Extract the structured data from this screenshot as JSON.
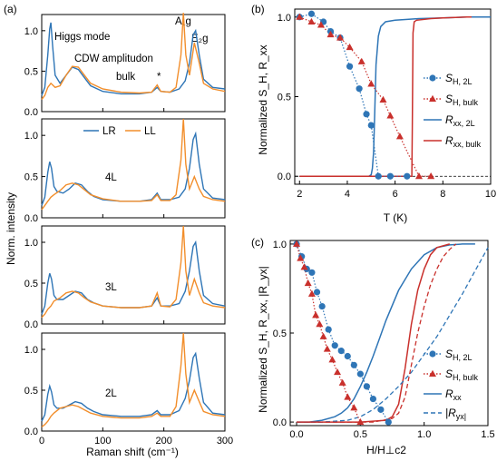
{
  "colors": {
    "blue": "#2e75b6",
    "orange": "#f28e2b",
    "red": "#c9302c",
    "dark": "#000000"
  },
  "chart_data": [
    {
      "id": "a",
      "type": "line",
      "panel_label": "(a)",
      "xlabel": "Raman shift (cm⁻¹)",
      "ylabel": "Norm. intensity",
      "xlim": [
        0,
        300
      ],
      "xticks": [
        "0",
        "100",
        "200",
        "300"
      ],
      "yticks": [
        "0.0",
        "0.5",
        "1.0"
      ],
      "legend": {
        "position": "top-left of 4L panel",
        "entries": [
          "LR",
          "LL"
        ]
      },
      "subpanels": [
        {
          "sample": "bulk",
          "ylim": [
            0,
            1.2
          ],
          "annotations": [
            "Higgs mode",
            "CDW amplitudon",
            "*",
            "A₁g",
            "E₂g"
          ],
          "series": [
            {
              "name": "LR",
              "x": [
                0,
                5,
                10,
                13,
                15,
                18,
                22,
                30,
                40,
                50,
                60,
                70,
                80,
                100,
                130,
                160,
                180,
                189,
                195,
                210,
                225,
                235,
                242,
                248,
                252,
                258,
                265,
                280,
                300
              ],
              "y": [
                0.2,
                0.3,
                0.7,
                1.02,
                1.1,
                0.8,
                0.45,
                0.35,
                0.45,
                0.55,
                0.52,
                0.42,
                0.32,
                0.25,
                0.22,
                0.22,
                0.24,
                0.3,
                0.25,
                0.24,
                0.28,
                0.38,
                0.6,
                0.95,
                1.0,
                0.7,
                0.4,
                0.3,
                0.28
              ]
            },
            {
              "name": "LL",
              "x": [
                0,
                5,
                10,
                15,
                22,
                30,
                40,
                50,
                60,
                70,
                80,
                100,
                130,
                160,
                180,
                189,
                195,
                210,
                220,
                228,
                232,
                236,
                242,
                250,
                258,
                265,
                280,
                300
              ],
              "y": [
                0.15,
                0.2,
                0.3,
                0.35,
                0.3,
                0.32,
                0.45,
                0.56,
                0.55,
                0.45,
                0.35,
                0.28,
                0.24,
                0.23,
                0.24,
                0.33,
                0.25,
                0.24,
                0.3,
                0.7,
                1.22,
                0.7,
                0.45,
                0.85,
                0.6,
                0.35,
                0.28,
                0.25
              ]
            }
          ]
        },
        {
          "sample": "4L",
          "ylim": [
            0,
            1.2
          ],
          "series": [
            {
              "name": "LR",
              "x": [
                0,
                5,
                10,
                13,
                16,
                20,
                25,
                35,
                45,
                55,
                65,
                75,
                85,
                100,
                130,
                160,
                180,
                189,
                195,
                210,
                225,
                235,
                242,
                248,
                252,
                258,
                265,
                280,
                300
              ],
              "y": [
                0.15,
                0.25,
                0.55,
                0.68,
                0.6,
                0.38,
                0.32,
                0.3,
                0.35,
                0.42,
                0.4,
                0.32,
                0.26,
                0.22,
                0.2,
                0.2,
                0.22,
                0.3,
                0.22,
                0.22,
                0.25,
                0.35,
                0.6,
                0.95,
                1.02,
                0.65,
                0.35,
                0.24,
                0.22
              ]
            },
            {
              "name": "LL",
              "x": [
                0,
                5,
                10,
                15,
                20,
                30,
                40,
                50,
                60,
                70,
                80,
                100,
                130,
                160,
                180,
                189,
                195,
                210,
                220,
                228,
                232,
                236,
                242,
                250,
                258,
                265,
                280,
                300
              ],
              "y": [
                0.1,
                0.15,
                0.2,
                0.25,
                0.28,
                0.33,
                0.4,
                0.42,
                0.4,
                0.34,
                0.28,
                0.23,
                0.2,
                0.2,
                0.21,
                0.28,
                0.21,
                0.21,
                0.28,
                0.7,
                1.2,
                0.65,
                0.35,
                0.5,
                0.35,
                0.26,
                0.22,
                0.2
              ]
            }
          ]
        },
        {
          "sample": "3L",
          "ylim": [
            0,
            1.2
          ],
          "series": [
            {
              "name": "LR",
              "x": [
                0,
                5,
                10,
                13,
                16,
                20,
                25,
                35,
                45,
                55,
                65,
                75,
                85,
                100,
                130,
                160,
                180,
                189,
                195,
                210,
                225,
                235,
                242,
                248,
                252,
                258,
                265,
                280,
                300
              ],
              "y": [
                0.12,
                0.22,
                0.5,
                0.62,
                0.55,
                0.35,
                0.3,
                0.3,
                0.35,
                0.4,
                0.38,
                0.3,
                0.26,
                0.22,
                0.2,
                0.2,
                0.22,
                0.32,
                0.22,
                0.22,
                0.25,
                0.4,
                0.65,
                0.95,
                1.0,
                0.65,
                0.35,
                0.25,
                0.22
              ]
            },
            {
              "name": "LL",
              "x": [
                0,
                5,
                10,
                15,
                20,
                30,
                40,
                50,
                60,
                70,
                80,
                100,
                130,
                160,
                180,
                189,
                195,
                210,
                220,
                228,
                232,
                236,
                242,
                250,
                258,
                265,
                280,
                300
              ],
              "y": [
                0.08,
                0.12,
                0.18,
                0.22,
                0.28,
                0.32,
                0.38,
                0.4,
                0.38,
                0.32,
                0.27,
                0.22,
                0.2,
                0.2,
                0.22,
                0.38,
                0.22,
                0.21,
                0.3,
                0.75,
                1.2,
                0.65,
                0.35,
                0.55,
                0.38,
                0.26,
                0.22,
                0.2
              ]
            }
          ]
        },
        {
          "sample": "2L",
          "ylim": [
            0,
            1.2
          ],
          "series": [
            {
              "name": "LR",
              "x": [
                0,
                5,
                10,
                13,
                16,
                20,
                25,
                35,
                45,
                55,
                65,
                75,
                85,
                100,
                130,
                160,
                180,
                189,
                195,
                210,
                225,
                235,
                242,
                248,
                252,
                258,
                265,
                280,
                300
              ],
              "y": [
                0.12,
                0.2,
                0.45,
                0.55,
                0.48,
                0.32,
                0.28,
                0.28,
                0.32,
                0.36,
                0.34,
                0.28,
                0.24,
                0.2,
                0.18,
                0.18,
                0.2,
                0.25,
                0.2,
                0.2,
                0.25,
                0.4,
                0.62,
                0.9,
                0.95,
                0.65,
                0.35,
                0.22,
                0.2
              ]
            },
            {
              "name": "LL",
              "x": [
                0,
                5,
                10,
                15,
                20,
                30,
                40,
                50,
                60,
                70,
                80,
                100,
                130,
                160,
                180,
                189,
                195,
                210,
                220,
                228,
                232,
                236,
                242,
                250,
                258,
                265,
                280,
                300
              ],
              "y": [
                0.05,
                0.08,
                0.12,
                0.18,
                0.22,
                0.28,
                0.3,
                0.32,
                0.3,
                0.26,
                0.22,
                0.18,
                0.16,
                0.16,
                0.18,
                0.22,
                0.18,
                0.18,
                0.3,
                0.8,
                1.2,
                0.7,
                0.35,
                0.5,
                0.36,
                0.24,
                0.2,
                0.18
              ]
            }
          ]
        }
      ]
    },
    {
      "id": "b",
      "type": "line",
      "panel_label": "(b)",
      "xlabel": "T (K)",
      "ylabel": "Normalized S_H, R_xx",
      "xlim": [
        1.8,
        10
      ],
      "ylim": [
        -0.05,
        1.05
      ],
      "xticks": [
        "2",
        "4",
        "6",
        "8",
        "10"
      ],
      "yticks": [
        "0.0",
        "0.5",
        "1.0"
      ],
      "legend": {
        "position": "lower-right",
        "entries": [
          "S_H, 2L",
          "S_H, bulk",
          "R_xx, 2L",
          "R_xx, bulk"
        ]
      },
      "series": [
        {
          "name": "S_H, 2L",
          "x": [
            2.0,
            2.5,
            3.0,
            3.3,
            3.7,
            4.1,
            4.5,
            4.8,
            5.0,
            5.3,
            5.8,
            6.5
          ],
          "y": [
            1.0,
            1.02,
            0.97,
            0.91,
            0.87,
            0.69,
            0.55,
            0.39,
            0.32,
            0.0,
            0.0,
            0.0
          ]
        },
        {
          "name": "S_H, bulk",
          "x": [
            2.0,
            2.5,
            2.9,
            3.3,
            3.7,
            4.1,
            4.6,
            5.0,
            5.5,
            5.8,
            6.2,
            7.0,
            7.5
          ],
          "y": [
            1.0,
            0.97,
            0.95,
            0.89,
            0.87,
            0.81,
            0.72,
            0.58,
            0.48,
            0.38,
            0.25,
            0.0,
            0.0
          ]
        },
        {
          "name": "R_xx, 2L",
          "x": [
            2,
            4,
            4.9,
            5.0,
            5.05,
            5.1,
            5.15,
            5.2,
            5.3,
            5.4,
            5.6,
            6,
            7,
            8,
            9,
            10
          ],
          "y": [
            0,
            0,
            0,
            0.01,
            0.05,
            0.15,
            0.4,
            0.7,
            0.88,
            0.94,
            0.97,
            0.98,
            0.99,
            0.995,
            1.0,
            1.0
          ]
        },
        {
          "name": "R_xx, bulk",
          "x": [
            2,
            4,
            6,
            6.7,
            6.72,
            6.75,
            6.8,
            6.9,
            7.5,
            8,
            9,
            9.2
          ],
          "y": [
            0,
            0,
            0,
            0,
            0.3,
            0.9,
            0.97,
            0.98,
            0.99,
            0.995,
            1.0,
            1.0
          ]
        }
      ]
    },
    {
      "id": "c",
      "type": "line",
      "panel_label": "(c)",
      "xlabel": "H/H⊥c2",
      "ylabel": "Normalized S_H, R_xx, |R_yx|",
      "xlim": [
        -0.05,
        1.5
      ],
      "ylim": [
        -0.02,
        1.02
      ],
      "xticks": [
        "0.0",
        "0.5",
        "1.0",
        "1.5"
      ],
      "yticks": [
        "0.0",
        "0.5",
        "1.0"
      ],
      "legend": {
        "position": "lower-right",
        "entries": [
          "S_H, 2L",
          "S_H, bulk",
          "R_xx",
          "|R_yx|"
        ]
      },
      "series": [
        {
          "name": "S_H, 2L",
          "x": [
            0.0,
            0.04,
            0.08,
            0.12,
            0.16,
            0.2,
            0.25,
            0.3,
            0.35,
            0.4,
            0.45,
            0.5,
            0.55,
            0.6,
            0.66,
            0.72
          ],
          "y": [
            1.0,
            0.93,
            0.86,
            0.84,
            0.73,
            0.65,
            0.52,
            0.43,
            0.4,
            0.37,
            0.32,
            0.27,
            0.2,
            0.13,
            0.07,
            0.0
          ]
        },
        {
          "name": "S_H, bulk",
          "x": [
            0.0,
            0.03,
            0.06,
            0.09,
            0.12,
            0.15,
            0.18,
            0.21,
            0.24,
            0.28,
            0.32,
            0.36,
            0.4,
            0.45,
            0.5
          ],
          "y": [
            1.0,
            0.92,
            0.87,
            0.78,
            0.72,
            0.6,
            0.55,
            0.48,
            0.41,
            0.35,
            0.28,
            0.22,
            0.14,
            0.08,
            0.0
          ]
        },
        {
          "name": "R_xx, 2L",
          "x": [
            0.0,
            0.1,
            0.2,
            0.3,
            0.35,
            0.4,
            0.45,
            0.5,
            0.55,
            0.6,
            0.65,
            0.7,
            0.8,
            0.9,
            1.0,
            1.1,
            1.2,
            1.3,
            1.4
          ],
          "y": [
            0.0,
            0.0,
            0.01,
            0.03,
            0.05,
            0.08,
            0.13,
            0.2,
            0.28,
            0.37,
            0.47,
            0.57,
            0.74,
            0.86,
            0.94,
            0.98,
            0.995,
            1.0,
            1.0
          ]
        },
        {
          "name": "R_xx, bulk",
          "x": [
            0.0,
            0.3,
            0.5,
            0.7,
            0.75,
            0.8,
            0.85,
            0.9,
            0.95,
            1.0,
            1.05,
            1.1,
            1.2
          ],
          "y": [
            0.0,
            0.0,
            0.0,
            0.01,
            0.03,
            0.1,
            0.3,
            0.55,
            0.74,
            0.86,
            0.94,
            0.98,
            1.0
          ]
        },
        {
          "name": "|R_yx|, 2L",
          "x": [
            0.0,
            0.2,
            0.4,
            0.5,
            0.6,
            0.7,
            0.8,
            0.9,
            1.0,
            1.1,
            1.2,
            1.3,
            1.4,
            1.5
          ],
          "y": [
            0.0,
            0.0,
            0.01,
            0.03,
            0.07,
            0.13,
            0.2,
            0.28,
            0.38,
            0.48,
            0.6,
            0.72,
            0.85,
            0.98
          ]
        },
        {
          "name": "|R_yx|, bulk",
          "x": [
            0.0,
            0.3,
            0.6,
            0.75,
            0.8,
            0.85,
            0.9,
            0.95,
            1.0,
            1.05,
            1.1,
            1.15,
            1.2,
            1.25
          ],
          "y": [
            0.0,
            0.0,
            0.0,
            0.02,
            0.05,
            0.14,
            0.32,
            0.5,
            0.65,
            0.77,
            0.86,
            0.93,
            0.97,
            1.0
          ]
        }
      ]
    }
  ]
}
